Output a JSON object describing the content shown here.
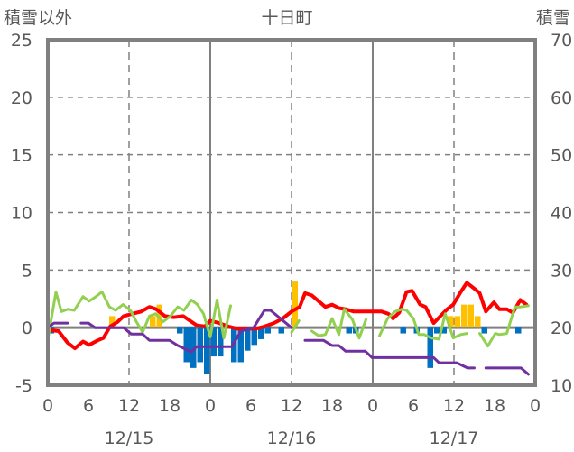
{
  "chart_data": {
    "type": "line",
    "title": "十日町",
    "ylabel_left": "積雪以外",
    "ylabel_right": "積雪",
    "ylim_left": [
      -5,
      25
    ],
    "ylim_right": [
      10,
      70
    ],
    "yticks_left": [
      "25",
      "20",
      "15",
      "10",
      "5",
      "0",
      "-5"
    ],
    "yticks_right": [
      "70",
      "60",
      "50",
      "40",
      "30",
      "20",
      "10"
    ],
    "xlim_hours": [
      0,
      72
    ],
    "xticks": [
      "0",
      "6",
      "12",
      "18",
      "0",
      "6",
      "12",
      "18",
      "0",
      "6",
      "12",
      "18",
      "0"
    ],
    "dates": [
      "12/15",
      "12/16",
      "12/17"
    ],
    "grid": true,
    "colors": {
      "red": "#ff0000",
      "green": "#92d050",
      "purple": "#7030a0",
      "bar_pos": "#ffc000",
      "bar_neg": "#0070c0",
      "axis": "#808080"
    },
    "series": [
      {
        "name": "red",
        "axis": "left",
        "points": [
          [
            0,
            -0.2
          ],
          [
            1.6,
            -0.3
          ],
          [
            2.9,
            -1.3
          ],
          [
            4,
            -1.8
          ],
          [
            5.2,
            -1.2
          ],
          [
            6.1,
            -1.5
          ],
          [
            7.4,
            -1.1
          ],
          [
            8.2,
            -0.9
          ],
          [
            9.2,
            0.1
          ],
          [
            10.3,
            0.5
          ],
          [
            11.2,
            1.0
          ],
          [
            12.5,
            1.2
          ],
          [
            13.8,
            1.4
          ],
          [
            15,
            1.8
          ],
          [
            16,
            1.6
          ],
          [
            17.3,
            1.0
          ],
          [
            18.6,
            0.9
          ],
          [
            20,
            1.0
          ],
          [
            21,
            0.6
          ],
          [
            22,
            0.2
          ],
          [
            23.2,
            0.1
          ],
          [
            24,
            0.6
          ],
          [
            25.3,
            0.4
          ],
          [
            26.7,
            0.1
          ],
          [
            28,
            -0.1
          ],
          [
            30.7,
            -0.1
          ],
          [
            32,
            0.1
          ],
          [
            33.4,
            0.4
          ],
          [
            34.7,
            0.8
          ],
          [
            36,
            1.4
          ],
          [
            37.2,
            1.8
          ],
          [
            38,
            3.0
          ],
          [
            39,
            2.8
          ],
          [
            41,
            1.8
          ],
          [
            42,
            2.0
          ],
          [
            43,
            1.7
          ],
          [
            44,
            1.6
          ],
          [
            45.2,
            1.4
          ],
          [
            47.2,
            1.4
          ],
          [
            49.3,
            1.4
          ],
          [
            50.3,
            1.2
          ],
          [
            51,
            0.8
          ],
          [
            51.9,
            1.3
          ],
          [
            53,
            3.1
          ],
          [
            53.8,
            3.2
          ],
          [
            55,
            2.0
          ],
          [
            55.8,
            1.8
          ],
          [
            57,
            0.4
          ],
          [
            58,
            1.0
          ],
          [
            59,
            1.6
          ],
          [
            59.9,
            2.0
          ],
          [
            61,
            3.1
          ],
          [
            61.9,
            3.9
          ],
          [
            63,
            3.4
          ],
          [
            63.8,
            3.0
          ],
          [
            64.7,
            1.4
          ],
          [
            65.9,
            2.2
          ],
          [
            66.7,
            1.6
          ],
          [
            67.8,
            1.6
          ],
          [
            68.7,
            1.3
          ],
          [
            69.8,
            2.4
          ],
          [
            70.7,
            2.0
          ]
        ]
      },
      {
        "name": "green",
        "axis": "left",
        "points": [
          [
            0,
            -1.0
          ],
          [
            1.2,
            3.1
          ],
          [
            2,
            1.4
          ],
          [
            3,
            1.6
          ],
          [
            3.9,
            1.5
          ],
          [
            5.2,
            2.7
          ],
          [
            6.1,
            2.3
          ],
          [
            7.1,
            2.7
          ],
          [
            8,
            3.1
          ],
          [
            9.1,
            1.8
          ],
          [
            10,
            1.5
          ],
          [
            11.1,
            2.0
          ],
          [
            12.2,
            1.5
          ],
          [
            13,
            0.6
          ],
          [
            14,
            -0.4
          ],
          [
            15,
            1.0
          ],
          [
            15.9,
            1.2
          ],
          [
            17,
            0.5
          ],
          [
            18.1,
            1.0
          ],
          [
            19.2,
            1.8
          ],
          [
            20.1,
            1.5
          ],
          [
            21.2,
            2.4
          ],
          [
            22.1,
            2.0
          ],
          [
            23,
            1.2
          ],
          [
            24,
            -0.8
          ],
          [
            25,
            2.4
          ],
          [
            26,
            -0.9
          ],
          [
            27,
            1.9
          ],
          null,
          [
            36,
            -0.4
          ],
          [
            37.1,
            0.6
          ],
          null,
          [
            39,
            -0.3
          ],
          [
            40,
            -0.7
          ],
          [
            41,
            -0.6
          ],
          [
            42,
            0.8
          ],
          [
            43,
            -0.6
          ],
          [
            43.8,
            1.6
          ],
          [
            45,
            0.7
          ],
          [
            46,
            -0.9
          ],
          [
            47,
            0.7
          ],
          null,
          [
            49,
            -0.7
          ],
          [
            50.2,
            0.8
          ],
          [
            51.3,
            1.4
          ],
          [
            52.3,
            1.6
          ],
          [
            53,
            1.5
          ],
          [
            54,
            0.8
          ],
          [
            54.8,
            -0.6
          ],
          [
            55.6,
            -0.6
          ],
          [
            56.7,
            -0.9
          ],
          [
            57.8,
            -1.0
          ],
          [
            58.7,
            1.2
          ],
          [
            59.9,
            -0.9
          ],
          [
            61,
            -0.6
          ],
          [
            61.9,
            -0.5
          ],
          null,
          [
            63.8,
            -0.5
          ],
          [
            65,
            -1.6
          ],
          [
            66.1,
            -0.5
          ],
          [
            66.7,
            -0.6
          ],
          [
            67.8,
            -0.5
          ],
          [
            69,
            1.8
          ],
          [
            69.8,
            1.8
          ],
          [
            71,
            1.9
          ]
        ]
      },
      {
        "name": "purple",
        "axis": "right",
        "points": [
          [
            0,
            20
          ],
          [
            0.9,
            20.8
          ],
          [
            2.9,
            20.8
          ],
          null,
          [
            4.9,
            20.8
          ],
          [
            6,
            20.8
          ],
          [
            7,
            20
          ],
          [
            11.2,
            20
          ],
          [
            12.3,
            18.9
          ],
          [
            14,
            18.9
          ],
          [
            15,
            17.8
          ],
          [
            18,
            17.8
          ],
          [
            19.2,
            16.9
          ],
          [
            21.2,
            15.8
          ],
          [
            22,
            16.7
          ],
          [
            27.2,
            16.7
          ],
          [
            28.5,
            19.4
          ],
          [
            30.4,
            20
          ],
          [
            32,
            23
          ],
          [
            32.9,
            23
          ],
          [
            36,
            20
          ],
          null,
          [
            38,
            17.8
          ],
          [
            40.7,
            17.8
          ],
          [
            42,
            16.9
          ],
          [
            43,
            16.9
          ],
          [
            44,
            15.9
          ],
          [
            46.9,
            15.9
          ],
          [
            47.9,
            14.8
          ],
          [
            57,
            14.8
          ],
          [
            57.8,
            13.9
          ],
          [
            60.4,
            13.9
          ],
          [
            62,
            13
          ],
          [
            63,
            13
          ],
          null,
          [
            64.7,
            13
          ],
          [
            69.9,
            13
          ],
          [
            71,
            11.9
          ]
        ]
      }
    ],
    "bars": {
      "name": "hourly change",
      "axis": "left",
      "values": [
        [
          0,
          -0.5
        ],
        [
          9,
          1
        ],
        [
          15,
          1
        ],
        [
          16,
          2
        ],
        [
          19,
          -0.5
        ],
        [
          20,
          -3
        ],
        [
          21,
          -3.5
        ],
        [
          22,
          -3
        ],
        [
          23,
          -4
        ],
        [
          24,
          -2.5
        ],
        [
          25,
          -2.5
        ],
        [
          27,
          -3
        ],
        [
          28,
          -3
        ],
        [
          29,
          -2
        ],
        [
          30,
          -1.5
        ],
        [
          31,
          -1
        ],
        [
          32,
          -0.5
        ],
        [
          34,
          -0.5
        ],
        [
          36,
          4
        ],
        [
          44,
          -0.5
        ],
        [
          45,
          -0.5
        ],
        [
          52,
          -0.5
        ],
        [
          54,
          -0.5
        ],
        [
          56,
          -3.5
        ],
        [
          57,
          -0.5
        ],
        [
          58,
          -0.5
        ],
        [
          59,
          1
        ],
        [
          60,
          1
        ],
        [
          61,
          2
        ],
        [
          62,
          2
        ],
        [
          63,
          1
        ],
        [
          64,
          -0.5
        ],
        [
          69,
          -0.5
        ]
      ]
    }
  }
}
